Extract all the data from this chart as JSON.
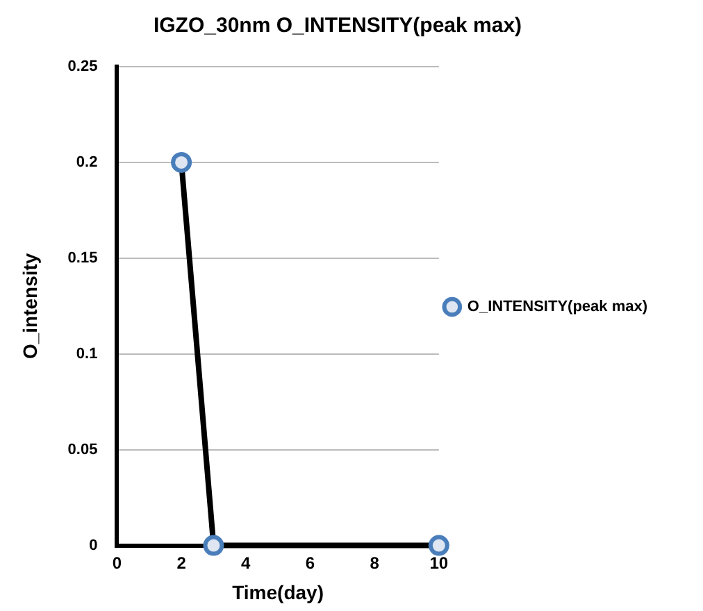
{
  "chart_data": {
    "type": "line",
    "title": "IGZO_30nm O_INTENSITY(peak max)",
    "xlabel": "Time(day)",
    "ylabel": "O_intensity",
    "x": [
      2,
      3,
      10
    ],
    "series": [
      {
        "name": "O_INTENSITY(peak max)",
        "color": "#000000",
        "colors": [
          "#4a7ebb",
          "#4a7ebb",
          "#4a7ebb"
        ],
        "values": [
          0.2,
          0,
          0
        ]
      }
    ],
    "xlim": [
      0,
      10
    ],
    "xticks": [
      0,
      2,
      4,
      6,
      8,
      10
    ],
    "ylim": [
      0,
      0.25
    ],
    "yticks": [
      0,
      0.05,
      0.1,
      0.15,
      0.2,
      0.25
    ],
    "grid": "y",
    "legend": "right",
    "marker": "circle",
    "line_style": "solid"
  }
}
